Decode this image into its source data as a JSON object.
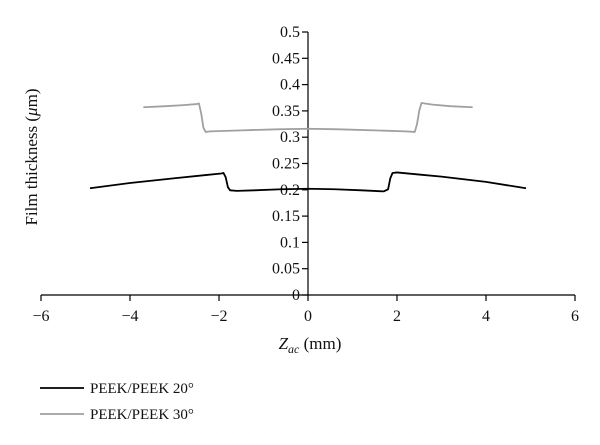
{
  "chart_data": {
    "type": "line",
    "title": "",
    "xlabel": "Z_ac (mm)",
    "xlabel_parts": {
      "main": "Z",
      "sub": "ac",
      "rest": " (mm)"
    },
    "ylabel": "Film thickness (μm)",
    "ylabel_parts": {
      "prefix": "Film thickness (",
      "italic": "μ",
      "suffix": "m)"
    },
    "xlim": [
      -6,
      6
    ],
    "ylim": [
      0,
      0.5
    ],
    "xticks": [
      -6,
      -4,
      -2,
      0,
      2,
      4,
      6
    ],
    "xtick_labels": [
      "−6",
      "−4",
      "−2",
      "0",
      "2",
      "4",
      "6"
    ],
    "yticks": [
      0,
      0.05,
      0.1,
      0.15,
      0.2,
      0.25,
      0.3,
      0.35,
      0.4,
      0.45,
      0.5
    ],
    "ytick_labels": [
      "0",
      "0.05",
      "0.1",
      "0.15",
      "0.2",
      "0.25",
      "0.3",
      "0.35",
      "0.4",
      "0.45",
      "0.5"
    ],
    "grid": false,
    "legend_position": "bottom-left",
    "series": [
      {
        "name": "PEEK/PEEK 20°",
        "color": "#000000",
        "points": [
          [
            -4.9,
            0.203
          ],
          [
            -4.0,
            0.213
          ],
          [
            -3.0,
            0.222
          ],
          [
            -2.3,
            0.228
          ],
          [
            -1.95,
            0.231
          ],
          [
            -1.9,
            0.232
          ],
          [
            -1.85,
            0.224
          ],
          [
            -1.8,
            0.205
          ],
          [
            -1.75,
            0.199
          ],
          [
            -1.6,
            0.198
          ],
          [
            -1.2,
            0.199
          ],
          [
            -0.6,
            0.201
          ],
          [
            0.0,
            0.202
          ],
          [
            0.6,
            0.201
          ],
          [
            1.2,
            0.199
          ],
          [
            1.7,
            0.197
          ],
          [
            1.8,
            0.201
          ],
          [
            1.85,
            0.222
          ],
          [
            1.9,
            0.232
          ],
          [
            2.0,
            0.233
          ],
          [
            2.5,
            0.229
          ],
          [
            3.0,
            0.225
          ],
          [
            4.0,
            0.215
          ],
          [
            4.9,
            0.203
          ]
        ]
      },
      {
        "name": "PEEK/PEEK 30°",
        "color": "#a0a0a0",
        "points": [
          [
            -3.7,
            0.357
          ],
          [
            -3.2,
            0.359
          ],
          [
            -2.8,
            0.361
          ],
          [
            -2.5,
            0.363
          ],
          [
            -2.45,
            0.364
          ],
          [
            -2.4,
            0.345
          ],
          [
            -2.35,
            0.318
          ],
          [
            -2.3,
            0.31
          ],
          [
            -2.2,
            0.311
          ],
          [
            -1.5,
            0.313
          ],
          [
            -0.7,
            0.315
          ],
          [
            0.0,
            0.316
          ],
          [
            0.7,
            0.315
          ],
          [
            1.5,
            0.313
          ],
          [
            2.2,
            0.311
          ],
          [
            2.4,
            0.31
          ],
          [
            2.45,
            0.325
          ],
          [
            2.5,
            0.35
          ],
          [
            2.55,
            0.365
          ],
          [
            2.8,
            0.362
          ],
          [
            3.2,
            0.359
          ],
          [
            3.7,
            0.357
          ]
        ]
      }
    ]
  }
}
